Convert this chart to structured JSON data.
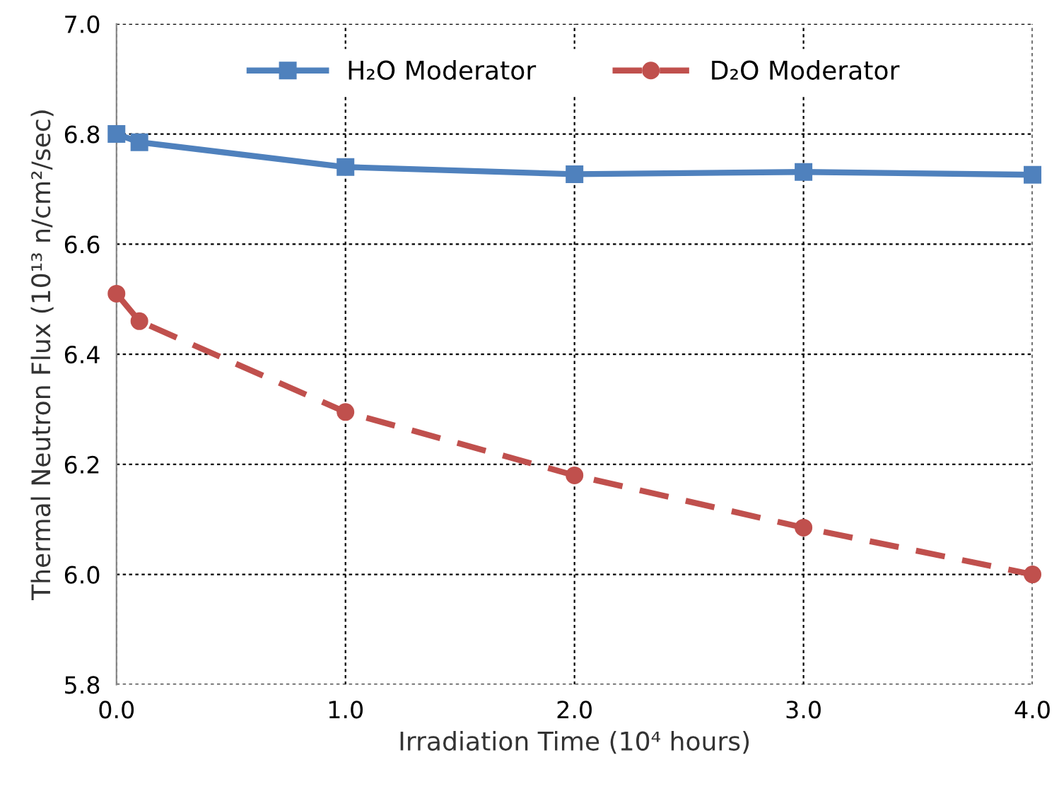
{
  "chart_data": {
    "type": "line",
    "xlabel": "Irradiation Time (10⁴ hours)",
    "ylabel": "Thermal Neutron Flux (10¹³ n/cm²/sec)",
    "x": [
      0,
      0.1,
      1,
      2,
      3,
      4
    ],
    "series": [
      {
        "name": "H₂O Moderator",
        "color": "#4f81bd",
        "marker": "square",
        "line_style": "solid",
        "values": [
          6.8,
          6.785,
          6.74,
          6.727,
          6.731,
          6.726
        ]
      },
      {
        "name": "D₂O Moderator",
        "color": "#c0504d",
        "marker": "circle",
        "line_style": "dashed",
        "values": [
          6.51,
          6.46,
          6.295,
          6.18,
          6.085,
          6.0
        ]
      }
    ],
    "xlim": [
      0,
      4
    ],
    "xticks": [
      {
        "value": 0,
        "label": "0.0"
      },
      {
        "value": 1,
        "label": "1.0"
      },
      {
        "value": 2,
        "label": "2.0"
      },
      {
        "value": 3,
        "label": "3.0"
      },
      {
        "value": 4,
        "label": "4.0"
      }
    ],
    "ylim": [
      5.8,
      7.0
    ],
    "yticks": [
      {
        "value": 5.8,
        "label": "5.8"
      },
      {
        "value": 6.0,
        "label": "6.0"
      },
      {
        "value": 6.2,
        "label": "6.2"
      },
      {
        "value": 6.4,
        "label": "6.4"
      },
      {
        "value": 6.6,
        "label": "6.6"
      },
      {
        "value": 6.8,
        "label": "6.8"
      },
      {
        "value": 7.0,
        "label": "7.0"
      }
    ],
    "grid": true,
    "legend": "top"
  }
}
